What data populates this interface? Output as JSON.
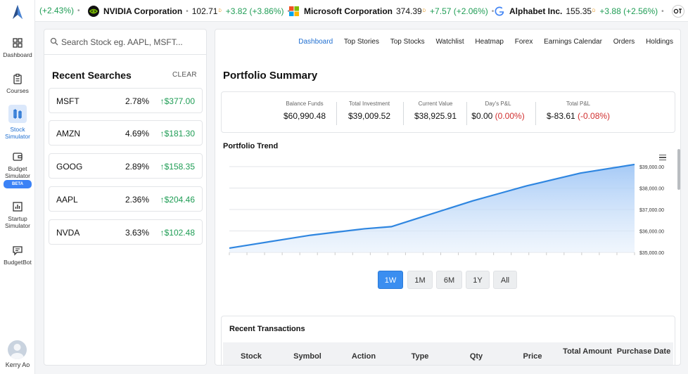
{
  "nav": {
    "items": [
      {
        "label": "Dashboard",
        "icon": "dashboard-icon"
      },
      {
        "label": "Courses",
        "icon": "clipboard-icon"
      },
      {
        "label": "Stock Simulator",
        "icon": "chart-bars-icon",
        "active": true
      },
      {
        "label": "Budget Simulator",
        "icon": "wallet-icon",
        "badge": "BETA"
      },
      {
        "label": "Startup Simulator",
        "icon": "bar-chart-icon"
      },
      {
        "label": "BudgetBot",
        "icon": "chat-icon"
      }
    ],
    "user": "Kerry Ao"
  },
  "ticker": [
    {
      "name": "",
      "price": "",
      "change": "(+2.43%)"
    },
    {
      "name": "NVIDIA Corporation",
      "price": "102.71",
      "change": "+3.82 (+3.86%)"
    },
    {
      "name": "Microsoft Corporation",
      "price": "374.39",
      "change": "+7.57 (+2.06%)"
    },
    {
      "name": "Alphabet Inc.",
      "price": "155.35",
      "change": "+3.88 (+2.56%)"
    }
  ],
  "ticker_sup": "D",
  "search": {
    "placeholder": "Search Stock eg. AAPL, MSFT...",
    "recent_title": "Recent Searches",
    "clear_label": "CLEAR",
    "items": [
      {
        "symbol": "MSFT",
        "pct": "2.78%",
        "price": "$377.00"
      },
      {
        "symbol": "AMZN",
        "pct": "4.69%",
        "price": "$181.30"
      },
      {
        "symbol": "GOOG",
        "pct": "2.89%",
        "price": "$158.35"
      },
      {
        "symbol": "AAPL",
        "pct": "2.36%",
        "price": "$204.46"
      },
      {
        "symbol": "NVDA",
        "pct": "3.63%",
        "price": "$102.48"
      }
    ]
  },
  "topnav": [
    "Dashboard",
    "Top Stories",
    "Top Stocks",
    "Watchlist",
    "Heatmap",
    "Forex",
    "Earnings Calendar",
    "Orders",
    "Holdings"
  ],
  "portfolio": {
    "title": "Portfolio Summary",
    "balance_label": "Balance Funds",
    "balance": "$60,990.48",
    "investment_label": "Total Investment",
    "investment": "$39,009.52",
    "current_label": "Current Value",
    "current": "$38,925.91",
    "days_label": "Day's P&L",
    "days": "$0.00",
    "days_pct": "(0.00%)",
    "total_label": "Total P&L",
    "total": "$-83.61",
    "total_pct": "(-0.08%)"
  },
  "trend_title": "Portfolio Trend",
  "chart_data": {
    "type": "area",
    "title": "Portfolio Trend",
    "x": [
      0,
      1,
      2,
      3,
      4,
      5,
      6,
      7,
      8,
      9,
      10,
      11,
      12,
      13,
      14,
      15
    ],
    "values": [
      35200,
      35400,
      35600,
      35800,
      35950,
      36100,
      36200,
      36600,
      37000,
      37400,
      37750,
      38100,
      38400,
      38700,
      38900,
      39100
    ],
    "ylim": [
      35000,
      39000
    ],
    "yticks": [
      "$35,000.00",
      "$36,000.00",
      "$37,000.00",
      "$38,000.00",
      "$39,000.00"
    ],
    "ytick_values": [
      35000,
      36000,
      37000,
      38000,
      39000
    ],
    "color": "#2f86e0"
  },
  "range_buttons": [
    {
      "label": "1W",
      "active": true
    },
    {
      "label": "1M"
    },
    {
      "label": "6M"
    },
    {
      "label": "1Y"
    },
    {
      "label": "All"
    }
  ],
  "transactions": {
    "title": "Recent Transactions",
    "headers": [
      "Stock",
      "Symbol",
      "Action",
      "Type",
      "Qty",
      "Price",
      "Total Amount",
      "Purchase Date"
    ]
  }
}
